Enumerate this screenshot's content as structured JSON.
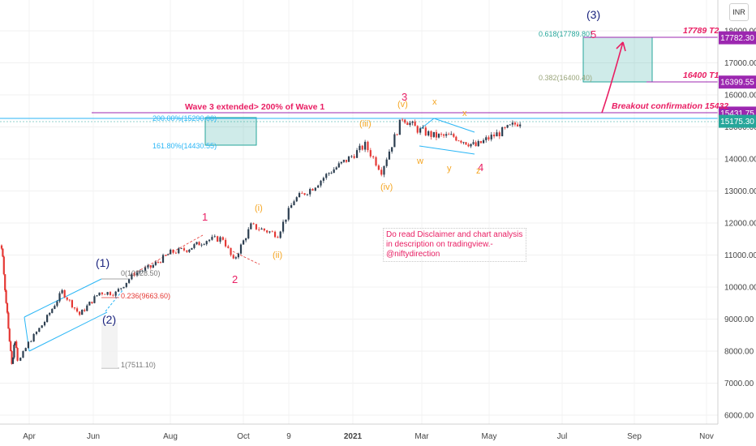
{
  "currency": "INR",
  "note_text": "Do read Disclaimer and chart analysis in description on tradingview.- @niftydirection",
  "colors": {
    "up": "#2c3e50",
    "down": "#e53935",
    "pink": "#e91e63",
    "blue": "#1a237e",
    "orange": "#f5a623",
    "teal": "#26a69a",
    "cyan": "#29b6f6",
    "purple": "#9c27b0"
  },
  "chart_data": {
    "type": "candlestick",
    "x_ticks": [
      "Apr",
      "Jun",
      "Aug",
      "Oct",
      "9",
      "2021",
      "Mar",
      "May",
      "Jul",
      "Sep",
      "Nov"
    ],
    "y_ticks": [
      "18000.00",
      "17000.00",
      "16000.00",
      "15000.00",
      "14000.00",
      "13000.00",
      "12000.00",
      "11000.00",
      "10000.00",
      "9000.00",
      "8000.00",
      "7000.00",
      "6000.00"
    ],
    "ylim": [
      5750,
      18700
    ],
    "price_labels": [
      {
        "text": "17782.30",
        "value": 17782.3,
        "color": "#9c27b0"
      },
      {
        "text": "16399.55",
        "value": 16399.55,
        "color": "#9c27b0"
      },
      {
        "text": "15431.75",
        "value": 15431.75,
        "color": "#9c27b0"
      },
      {
        "text": "15175.30",
        "value": 15175.3,
        "color": "#26a69a"
      }
    ],
    "fib_labels": [
      {
        "text": "0.618(17789.80)",
        "value": 17789.8
      },
      {
        "text": "0.382(16400.40)",
        "value": 16400.4
      },
      {
        "text": "200.00%(15290.00)",
        "value": 15290
      },
      {
        "text": "161.80%(14430.55)",
        "value": 14430.55
      },
      {
        "text": "0.236(9663.60)",
        "value": 9663.6
      },
      {
        "text": "1(7511.10)",
        "value": 7511.1
      },
      {
        "text": "0(10328.50)",
        "value": 10328.5
      }
    ],
    "targets": [
      {
        "text": "17789 T2",
        "value": 17789
      },
      {
        "text": "16400 T1",
        "value": 16400
      }
    ],
    "annotations": {
      "wave3_extended": "Wave 3 extended> 200% of Wave 1",
      "breakout": "Breakout confirmation 15432"
    },
    "wave_labels": [
      "(1)",
      "(2)",
      "(3)",
      "1",
      "2",
      "3",
      "4",
      "5",
      "(i)",
      "(ii)",
      "(iii)",
      "(iv)",
      "(v)",
      "w",
      "x",
      "y",
      "x",
      "z"
    ],
    "series": [
      {
        "date": "2020-03-23",
        "close": 7610
      },
      {
        "date": "2020-04-01",
        "close": 8250
      },
      {
        "date": "2020-04-15",
        "close": 8925
      },
      {
        "date": "2020-04-30",
        "close": 9860
      },
      {
        "date": "2020-05-15",
        "close": 9140
      },
      {
        "date": "2020-06-01",
        "close": 9830
      },
      {
        "date": "2020-06-15",
        "close": 9815
      },
      {
        "date": "2020-07-01",
        "close": 10430
      },
      {
        "date": "2020-07-15",
        "close": 10620
      },
      {
        "date": "2020-08-01",
        "close": 11075
      },
      {
        "date": "2020-08-15",
        "close": 11180
      },
      {
        "date": "2020-09-01",
        "close": 11470
      },
      {
        "date": "2020-09-15",
        "close": 11520
      },
      {
        "date": "2020-09-24",
        "close": 10805
      },
      {
        "date": "2020-10-09",
        "close": 11910
      },
      {
        "date": "2020-11-01",
        "close": 11640
      },
      {
        "date": "2020-11-15",
        "close": 12720
      },
      {
        "date": "2020-12-01",
        "close": 13110
      },
      {
        "date": "2020-12-15",
        "close": 13570
      },
      {
        "date": "2021-01-01",
        "close": 14018
      },
      {
        "date": "2021-01-15",
        "close": 14430
      },
      {
        "date": "2021-01-29",
        "close": 13630
      },
      {
        "date": "2021-02-16",
        "close": 15300
      },
      {
        "date": "2021-03-01",
        "close": 14920
      },
      {
        "date": "2021-03-15",
        "close": 14720
      },
      {
        "date": "2021-04-01",
        "close": 14700
      },
      {
        "date": "2021-04-20",
        "close": 14400
      },
      {
        "date": "2021-05-01",
        "close": 14650
      },
      {
        "date": "2021-05-15",
        "close": 14900
      },
      {
        "date": "2021-05-28",
        "close": 15175
      }
    ]
  }
}
